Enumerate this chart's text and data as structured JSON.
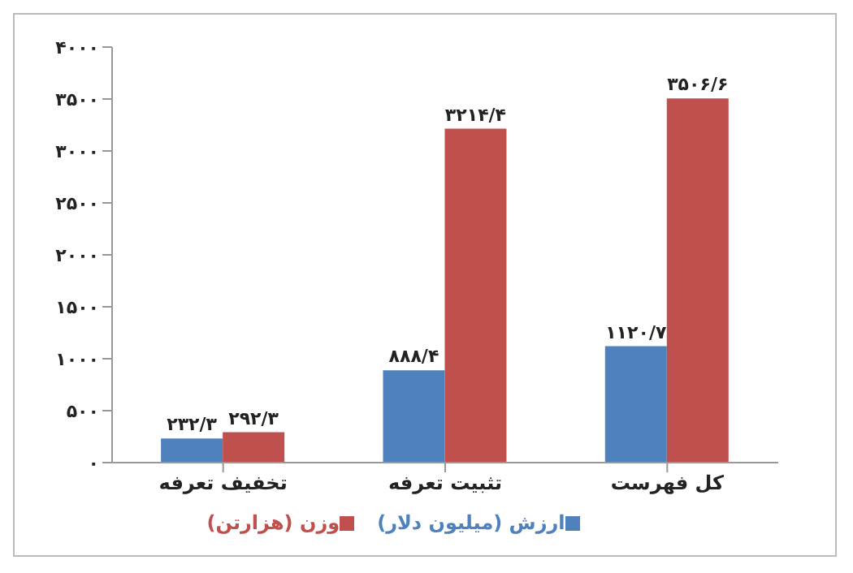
{
  "chart_data": {
    "type": "bar",
    "categories": [
      "تخفیف تعرفه",
      "تثبیت تعرفه",
      "کل فهرست"
    ],
    "series": [
      {
        "name": "ارزش (میلیون دلار)",
        "color": "#4f81bd",
        "values": [
          232.3,
          888.4,
          1120.7
        ],
        "value_labels": [
          "۲۳۲/۳",
          "۸۸۸/۴",
          "۱۱۲۰/۷"
        ]
      },
      {
        "name": "وزن (هزارتن)",
        "color": "#c0504d",
        "values": [
          292.3,
          3214.4,
          3506.6
        ],
        "value_labels": [
          "۲۹۲/۳",
          "۳۲۱۴/۴",
          "۳۵۰۶/۶"
        ]
      }
    ],
    "ylim": [
      0,
      4000
    ],
    "yticks": [
      {
        "value": 0,
        "label": "۰"
      },
      {
        "value": 500,
        "label": "۵۰۰"
      },
      {
        "value": 1000,
        "label": "۱۰۰۰"
      },
      {
        "value": 1500,
        "label": "۱۵۰۰"
      },
      {
        "value": 2000,
        "label": "۲۰۰۰"
      },
      {
        "value": 2500,
        "label": "۲۵۰۰"
      },
      {
        "value": 3000,
        "label": "۳۰۰۰"
      },
      {
        "value": 3500,
        "label": "۳۵۰۰"
      },
      {
        "value": 4000,
        "label": "۴۰۰۰"
      }
    ],
    "grid": false,
    "legend": "bottom"
  }
}
